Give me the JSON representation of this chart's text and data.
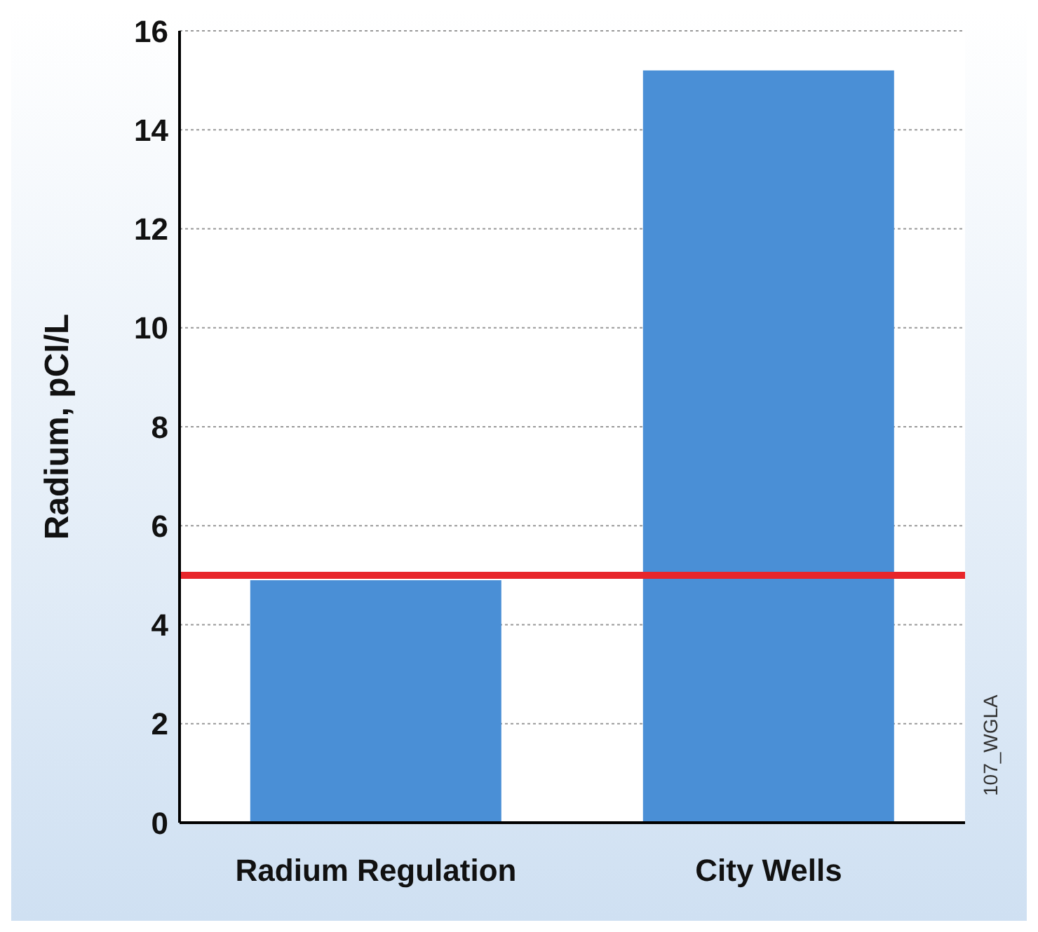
{
  "chart_data": {
    "type": "bar",
    "ylabel": "Radium, pCI/L",
    "categories": [
      "Radium Regulation",
      "City Wells"
    ],
    "values": [
      4.9,
      15.2
    ],
    "color": "#4a8fd6",
    "ylim": [
      0,
      16
    ],
    "yticks": [
      0,
      2,
      4,
      6,
      8,
      10,
      12,
      14,
      16
    ],
    "grid": "y",
    "ref_lines": [
      {
        "axis": "y",
        "value": 5,
        "label": null,
        "color": "#e8262b"
      }
    ],
    "annotations": [
      "107_WGLA"
    ]
  }
}
